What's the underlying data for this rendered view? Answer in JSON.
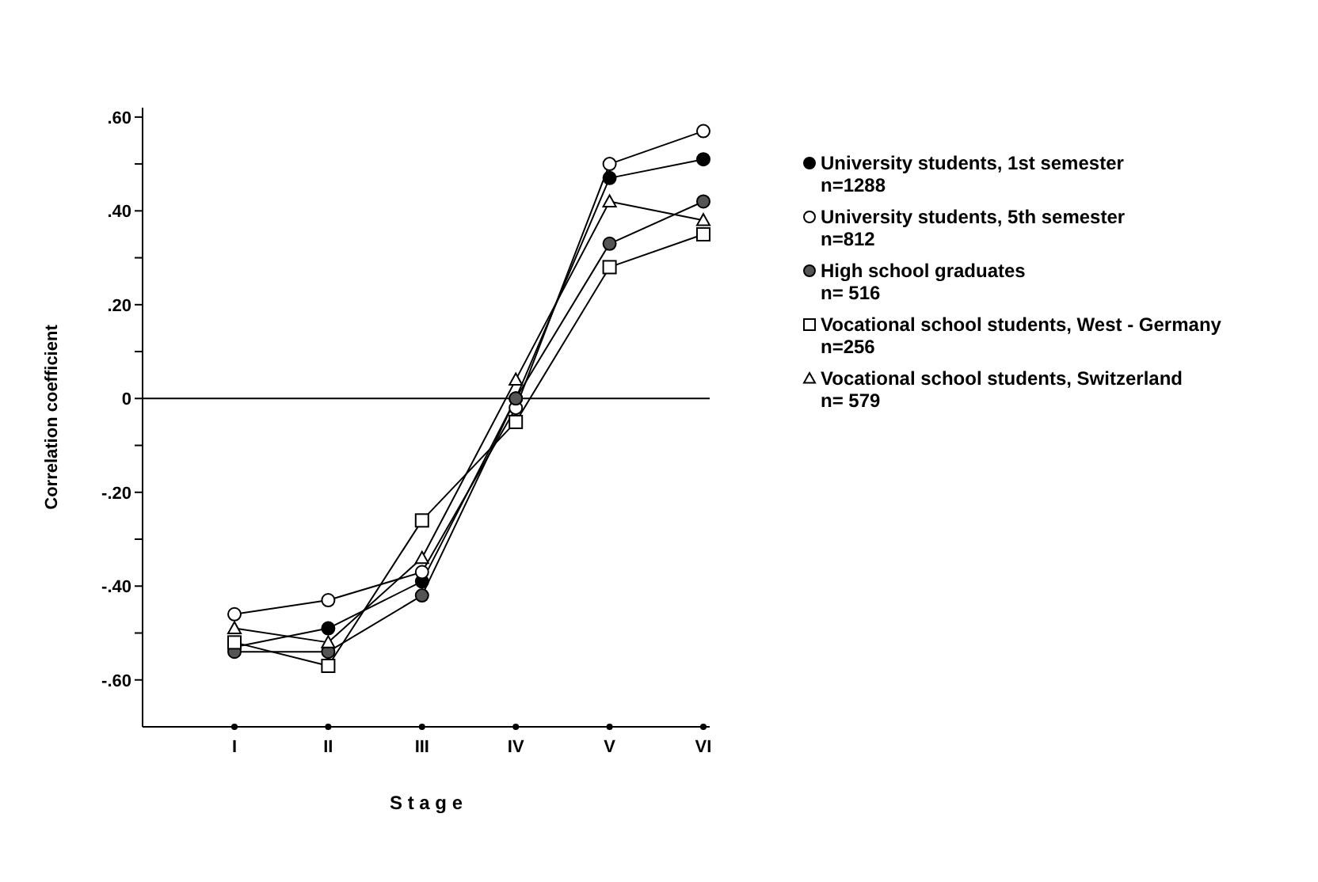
{
  "chart_data": {
    "type": "line",
    "xlabel": "S t a g e",
    "ylabel": "Correlation coefficient",
    "categories": [
      "I",
      "II",
      "III",
      "IV",
      "V",
      "VI"
    ],
    "ylim": [
      -0.7,
      0.62
    ],
    "yticks": [
      {
        "value": 0.6,
        "label": ".60"
      },
      {
        "value": 0.5,
        "label": null
      },
      {
        "value": 0.4,
        "label": ".40"
      },
      {
        "value": 0.3,
        "label": null
      },
      {
        "value": 0.2,
        "label": ".20"
      },
      {
        "value": 0.1,
        "label": null
      },
      0,
      {
        "value": -0.1,
        "label": null
      },
      {
        "value": -0.2,
        "label": "-.20"
      },
      {
        "value": -0.3,
        "label": null
      },
      {
        "value": -0.4,
        "label": "-.40"
      },
      {
        "value": -0.5,
        "label": null
      },
      {
        "value": -0.6,
        "label": "-.60"
      }
    ],
    "grid": false,
    "legend": "right",
    "line_style": "solid",
    "ref_lines": [
      {
        "axis": "y",
        "value": 0,
        "color": "#000000"
      }
    ],
    "series": [
      {
        "name": "University students, 1st semester\nn=1288",
        "color": "#000000",
        "marker": "circle",
        "values": [
          -0.53,
          -0.49,
          -0.39,
          0.0,
          0.47,
          0.51
        ]
      },
      {
        "name": "University students, 5th semester\nn=812",
        "color": "#ffffff",
        "marker": "circle",
        "values": [
          -0.46,
          -0.43,
          -0.37,
          -0.02,
          0.5,
          0.57
        ]
      },
      {
        "name": "High school graduates\nn= 516",
        "color": "#555555",
        "marker": "circle",
        "values": [
          -0.54,
          -0.54,
          -0.42,
          0.0,
          0.33,
          0.42
        ]
      },
      {
        "name": "Vocational school students, West - Germany\nn=256",
        "color": "#ffffff",
        "marker": "square",
        "values": [
          -0.52,
          -0.57,
          -0.26,
          -0.05,
          0.28,
          0.35
        ]
      },
      {
        "name": "Vocational school students, Switzerland\nn= 579",
        "color": "#ffffff",
        "marker": "triangle",
        "values": [
          -0.49,
          -0.52,
          -0.34,
          0.04,
          0.42,
          0.38
        ]
      }
    ]
  }
}
